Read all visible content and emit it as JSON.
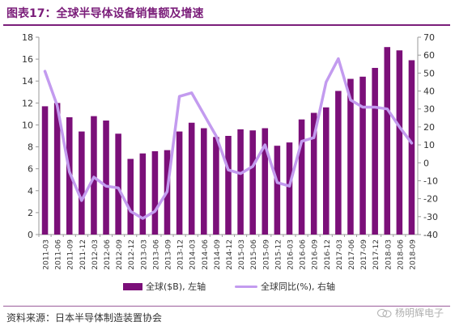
{
  "figure": {
    "title": "图表17：全球半导体设备销售额及增速",
    "source": "资料来源：日本半导体制造装置协会",
    "watermark": "杨明辉电子"
  },
  "colors": {
    "bar": "#7b0f79",
    "line": "#c39bef",
    "title": "#7b1e7a",
    "axis_text": "#333333"
  },
  "chart_data": {
    "type": "bar",
    "categories": [
      "2011-03",
      "2011-06",
      "2011-09",
      "2011-12",
      "2012-03",
      "2012-06",
      "2012-09",
      "2012-12",
      "2013-03",
      "2013-06",
      "2013-09",
      "2013-12",
      "2014-03",
      "2014-06",
      "2014-09",
      "2014-12",
      "2015-03",
      "2015-06",
      "2015-09",
      "2015-12",
      "2016-03",
      "2016-06",
      "2016-09",
      "2016-12",
      "2017-03",
      "2017-06",
      "2017-09",
      "2017-12",
      "2018-03",
      "2018-06",
      "2018-09"
    ],
    "series": [
      {
        "name": "全球($B), 左轴",
        "type": "bar",
        "axis": "left",
        "values": [
          11.7,
          12.0,
          10.7,
          9.4,
          10.8,
          10.4,
          9.2,
          6.9,
          7.4,
          7.6,
          7.7,
          9.4,
          10.2,
          9.7,
          8.9,
          9.0,
          9.6,
          9.5,
          9.7,
          8.1,
          8.4,
          10.5,
          11.1,
          11.6,
          13.1,
          14.2,
          14.4,
          15.2,
          17.1,
          16.8,
          15.9
        ]
      },
      {
        "name": "全球同比(%), 右轴",
        "type": "line",
        "axis": "right",
        "values": [
          51,
          32,
          -5,
          -21,
          -8,
          -13,
          -14,
          -27,
          -31,
          -27,
          -16,
          37,
          39,
          27,
          15,
          -4,
          -6,
          -2,
          10,
          -11,
          -13,
          12,
          14,
          45,
          58,
          35,
          31,
          31,
          30,
          20,
          11
        ]
      }
    ],
    "y_left": {
      "min": 0,
      "max": 18,
      "ticks": [
        0,
        2,
        4,
        6,
        8,
        10,
        12,
        14,
        16,
        18
      ]
    },
    "y_right": {
      "min": -40,
      "max": 70,
      "ticks": [
        -40,
        -30,
        -20,
        -10,
        0,
        10,
        20,
        30,
        40,
        50,
        60,
        70
      ]
    },
    "grid": false,
    "legend_position": "bottom"
  }
}
